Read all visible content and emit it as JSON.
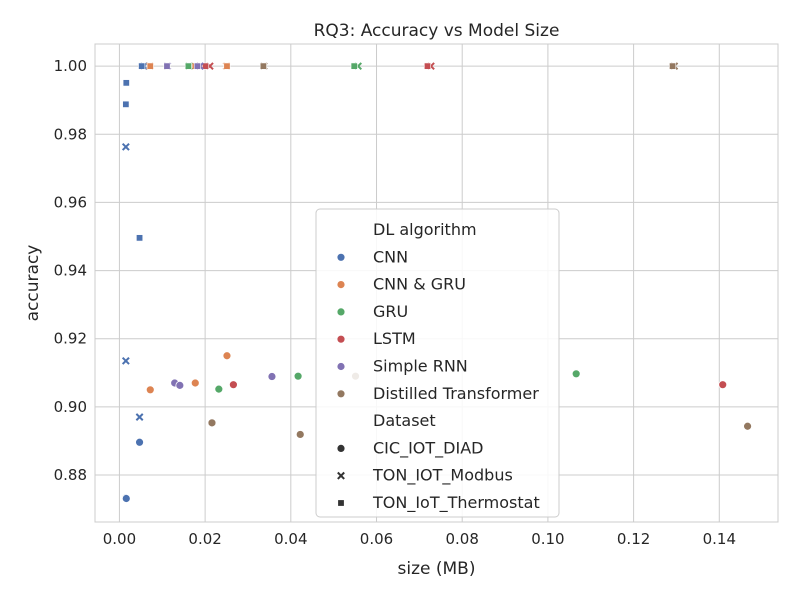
{
  "chart_data": {
    "type": "scatter",
    "title": "RQ3: Accuracy vs Model Size",
    "xlabel": "size (MB)",
    "ylabel": "accuracy",
    "xlim": [
      -0.0057,
      0.1537
    ],
    "ylim": [
      0.8662,
      1.0065
    ],
    "xticks": [
      0.0,
      0.02,
      0.04,
      0.06,
      0.08,
      0.1,
      0.12,
      0.14
    ],
    "xtick_labels": [
      "0.00",
      "0.02",
      "0.04",
      "0.06",
      "0.08",
      "0.10",
      "0.12",
      "0.14"
    ],
    "yticks": [
      0.88,
      0.9,
      0.92,
      0.94,
      0.96,
      0.98,
      1.0
    ],
    "ytick_labels": [
      "0.88",
      "0.90",
      "0.92",
      "0.94",
      "0.96",
      "0.98",
      "1.00"
    ],
    "grid": true,
    "legend_placement": "center",
    "hue_title": "DL algorithm",
    "style_title": "Dataset",
    "hues": [
      {
        "name": "CNN",
        "color": "#4c72b0"
      },
      {
        "name": "CNN & GRU",
        "color": "#dd8452"
      },
      {
        "name": "GRU",
        "color": "#55a868"
      },
      {
        "name": "LSTM",
        "color": "#c44e52"
      },
      {
        "name": "Simple RNN",
        "color": "#8172b3"
      },
      {
        "name": "Distilled Transformer",
        "color": "#937860"
      }
    ],
    "styles": [
      {
        "name": "CIC_IOT_DIAD",
        "marker": "circle"
      },
      {
        "name": "TON_IOT_Modbus",
        "marker": "x"
      },
      {
        "name": "TON_IoT_Thermostat",
        "marker": "square"
      }
    ],
    "series": [
      {
        "name": "CNN",
        "dataset": "CIC_IOT_DIAD",
        "points": [
          [
            0.0015,
            0.8733
          ],
          [
            0.0016,
            0.8731
          ],
          [
            0.0047,
            0.8896
          ]
        ]
      },
      {
        "name": "CNN",
        "dataset": "TON_IOT_Modbus",
        "points": [
          [
            0.0015,
            0.9763
          ],
          [
            0.0015,
            0.9135
          ],
          [
            0.0047,
            0.897
          ],
          [
            0.0057,
            1.0
          ]
        ]
      },
      {
        "name": "CNN",
        "dataset": "TON_IoT_Thermostat",
        "points": [
          [
            0.0016,
            0.9951
          ],
          [
            0.0015,
            0.9888
          ],
          [
            0.0047,
            0.9496
          ],
          [
            0.0052,
            1.0
          ]
        ]
      },
      {
        "name": "CNN & GRU",
        "dataset": "CIC_IOT_DIAD",
        "points": [
          [
            0.0072,
            0.905
          ],
          [
            0.0177,
            0.907
          ],
          [
            0.0251,
            0.915
          ]
        ]
      },
      {
        "name": "CNN & GRU",
        "dataset": "TON_IOT_Modbus",
        "points": [
          [
            0.0071,
            1.0
          ],
          [
            0.0176,
            1.0
          ],
          [
            0.025,
            1.0
          ]
        ]
      },
      {
        "name": "CNN & GRU",
        "dataset": "TON_IoT_Thermostat",
        "points": [
          [
            0.0072,
            1.0
          ],
          [
            0.0177,
            1.0
          ],
          [
            0.0251,
            1.0
          ]
        ]
      },
      {
        "name": "GRU",
        "dataset": "CIC_IOT_DIAD",
        "points": [
          [
            0.0232,
            0.9052
          ],
          [
            0.0417,
            0.909
          ],
          [
            0.1066,
            0.9097
          ]
        ]
      },
      {
        "name": "GRU",
        "dataset": "TON_IOT_Modbus",
        "points": [
          [
            0.0162,
            1.0
          ],
          [
            0.0557,
            1.0
          ]
        ]
      },
      {
        "name": "GRU",
        "dataset": "TON_IoT_Thermostat",
        "points": [
          [
            0.0161,
            1.0
          ],
          [
            0.0548,
            1.0
          ]
        ]
      },
      {
        "name": "LSTM",
        "dataset": "CIC_IOT_DIAD",
        "points": [
          [
            0.0266,
            0.9065
          ],
          [
            0.1408,
            0.9065
          ]
        ]
      },
      {
        "name": "LSTM",
        "dataset": "TON_IOT_Modbus",
        "points": [
          [
            0.0211,
            1.0
          ],
          [
            0.0727,
            1.0
          ]
        ]
      },
      {
        "name": "LSTM",
        "dataset": "TON_IoT_Thermostat",
        "points": [
          [
            0.0201,
            1.0
          ],
          [
            0.0719,
            1.0
          ]
        ]
      },
      {
        "name": "Simple RNN",
        "dataset": "CIC_IOT_DIAD",
        "points": [
          [
            0.0129,
            0.907
          ],
          [
            0.0141,
            0.9063
          ],
          [
            0.0356,
            0.9089
          ]
        ]
      },
      {
        "name": "Simple RNN",
        "dataset": "TON_IOT_Modbus",
        "points": [
          [
            0.0112,
            1.0
          ],
          [
            0.0188,
            1.0
          ]
        ]
      },
      {
        "name": "Simple RNN",
        "dataset": "TON_IoT_Thermostat",
        "points": [
          [
            0.0111,
            1.0
          ],
          [
            0.0182,
            1.0
          ]
        ]
      },
      {
        "name": "Distilled Transformer",
        "dataset": "CIC_IOT_DIAD",
        "points": [
          [
            0.0216,
            0.8953
          ],
          [
            0.0422,
            0.8919
          ],
          [
            0.0551,
            0.909
          ],
          [
            0.1466,
            0.8943
          ]
        ]
      },
      {
        "name": "Distilled Transformer",
        "dataset": "TON_IOT_Modbus",
        "points": [
          [
            0.0337,
            1.0
          ],
          [
            0.1295,
            1.0
          ]
        ]
      },
      {
        "name": "Distilled Transformer",
        "dataset": "TON_IoT_Thermostat",
        "points": [
          [
            0.0336,
            1.0
          ],
          [
            0.1291,
            1.0
          ]
        ]
      }
    ]
  }
}
